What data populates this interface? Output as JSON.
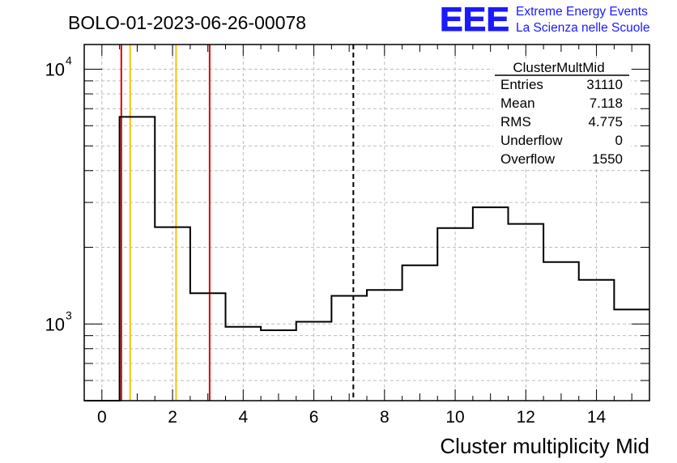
{
  "run_title": "BOLO-01-2023-06-26-00078",
  "logo": {
    "mark": "EEE",
    "line1": "Extreme Energy Events",
    "line2": "La Scienza nelle Scuole",
    "color": "#1a1aff"
  },
  "stats": {
    "title": "ClusterMultMid",
    "rows": [
      {
        "label": "Entries",
        "value": "31110"
      },
      {
        "label": "Mean",
        "value": "7.118"
      },
      {
        "label": "RMS",
        "value": "4.775"
      },
      {
        "label": "Underflow",
        "value": "0"
      },
      {
        "label": "Overflow",
        "value": "1550"
      }
    ]
  },
  "chart_data": {
    "type": "histogram",
    "title": "BOLO-01-2023-06-26-00078",
    "xlabel": "Cluster multiplicity Mid",
    "ylabel": "",
    "xlim": [
      -0.5,
      15.5
    ],
    "ylim": [
      500,
      12500
    ],
    "yscale": "log",
    "grid": true,
    "x_ticks": [
      "0",
      "2",
      "4",
      "6",
      "8",
      "10",
      "12",
      "14"
    ],
    "y_ticks": [
      {
        "base": "10",
        "exp": "3",
        "value": 1000
      },
      {
        "base": "10",
        "exp": "4",
        "value": 10000
      }
    ],
    "bins": [
      {
        "x": 0,
        "value": 0
      },
      {
        "x": 1,
        "value": 6500
      },
      {
        "x": 2,
        "value": 2400
      },
      {
        "x": 3,
        "value": 1320
      },
      {
        "x": 4,
        "value": 975
      },
      {
        "x": 5,
        "value": 945
      },
      {
        "x": 6,
        "value": 1020
      },
      {
        "x": 7,
        "value": 1290
      },
      {
        "x": 8,
        "value": 1360
      },
      {
        "x": 9,
        "value": 1700
      },
      {
        "x": 10,
        "value": 2380
      },
      {
        "x": 11,
        "value": 2870
      },
      {
        "x": 12,
        "value": 2470
      },
      {
        "x": 13,
        "value": 1750
      },
      {
        "x": 14,
        "value": 1490
      },
      {
        "x": 15,
        "value": 1140
      }
    ],
    "markers": [
      {
        "x": 0.55,
        "color": "#e00000",
        "style": "solid"
      },
      {
        "x": 0.8,
        "color": "#ffbf00",
        "style": "solid"
      },
      {
        "x": 2.1,
        "color": "#ffbf00",
        "style": "solid"
      },
      {
        "x": 3.05,
        "color": "#e00000",
        "style": "solid"
      },
      {
        "x": 7.118,
        "color": "#000000",
        "style": "dashed"
      }
    ]
  }
}
